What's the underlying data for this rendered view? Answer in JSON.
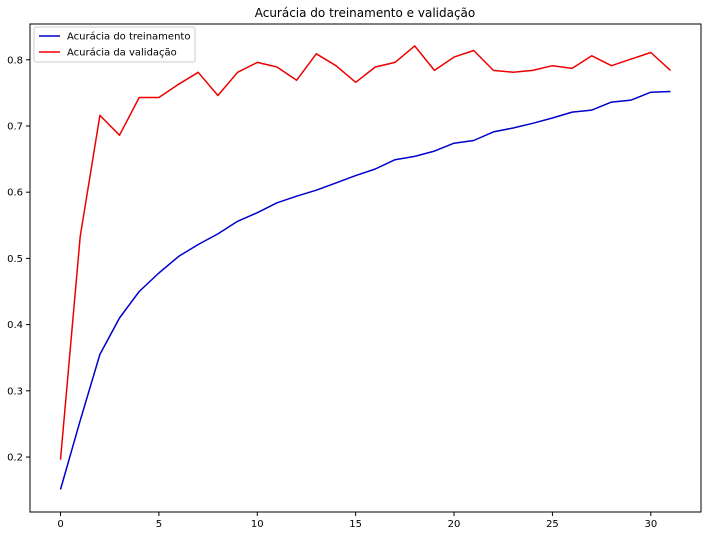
{
  "chart_data": {
    "type": "line",
    "title": "Acurácia do treinamento e validação",
    "xlabel": "",
    "ylabel": "",
    "xlim": [
      -1.55,
      32.55
    ],
    "ylim": [
      0.117,
      0.854
    ],
    "xticks": [
      0,
      5,
      10,
      15,
      20,
      25,
      30
    ],
    "yticks": [
      0.2,
      0.3,
      0.4,
      0.5,
      0.6,
      0.7,
      0.8
    ],
    "grid": false,
    "legend_position": "top-left",
    "x": [
      0,
      1,
      2,
      3,
      4,
      5,
      6,
      7,
      8,
      9,
      10,
      11,
      12,
      13,
      14,
      15,
      16,
      17,
      18,
      19,
      20,
      21,
      22,
      23,
      24,
      25,
      26,
      27,
      28,
      29,
      30,
      31
    ],
    "series": [
      {
        "name": "Acurácia do treinamento",
        "color": "#0000cc",
        "values": [
          0.151,
          0.255,
          0.355,
          0.41,
          0.45,
          0.478,
          0.503,
          0.521,
          0.537,
          0.556,
          0.569,
          0.584,
          0.594,
          0.603,
          0.614,
          0.625,
          0.635,
          0.649,
          0.654,
          0.662,
          0.674,
          0.678,
          0.691,
          0.697,
          0.704,
          0.712,
          0.721,
          0.724,
          0.736,
          0.739,
          0.751,
          0.752
        ]
      },
      {
        "name": "Acurácia da validação",
        "color": "#ee0000",
        "values": [
          0.196,
          0.533,
          0.716,
          0.686,
          0.743,
          0.743,
          0.763,
          0.781,
          0.746,
          0.781,
          0.796,
          0.789,
          0.769,
          0.809,
          0.791,
          0.766,
          0.789,
          0.796,
          0.821,
          0.784,
          0.804,
          0.814,
          0.784,
          0.781,
          0.784,
          0.791,
          0.787,
          0.806,
          0.791,
          0.801,
          0.811,
          0.784
        ]
      }
    ]
  }
}
